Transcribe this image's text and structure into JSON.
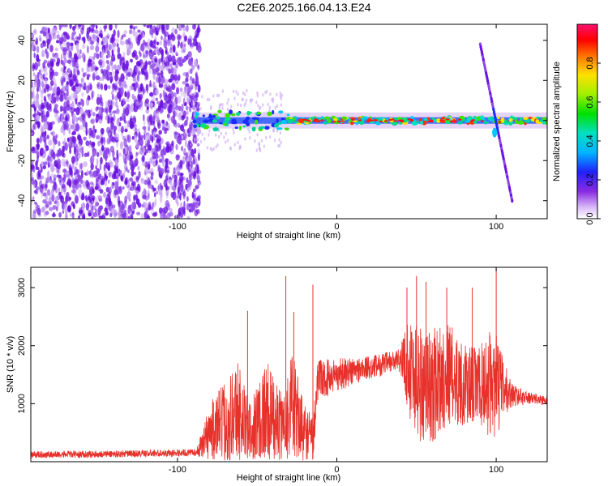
{
  "title": "C2E6.2025.166.04.13.E24",
  "colors": {
    "snr_line": "#e8312b",
    "scatter_noise": "#6a10e0",
    "scatter_light": "#c9a6f2"
  },
  "chart_data": [
    {
      "type": "heatmap",
      "xlabel": "Height of straight line (km)",
      "ylabel": "Frequency (Hz)",
      "xlim": [
        -192,
        132
      ],
      "ylim": [
        -49,
        48
      ],
      "xticks": [
        -100,
        0,
        100
      ],
      "xtick_labels": [
        "-100",
        "0",
        "100"
      ],
      "yticks": [
        -40,
        -20,
        0,
        20,
        40
      ],
      "ytick_labels": [
        "-40",
        "-20",
        "0",
        "20",
        "40"
      ],
      "grid": false,
      "colorbar": {
        "label": "Normalized spectral amplitude",
        "range": [
          0.0,
          1.0
        ],
        "ticks": [
          0.0,
          0.2,
          0.4,
          0.6,
          0.8
        ],
        "tick_labels": [
          "0.0",
          "0.2",
          "0.4",
          "0.6",
          "0.8"
        ],
        "colormap": "rainbow (white-violet-blue-cyan-green-yellow-red-magenta)"
      },
      "features": {
        "noise_region_x": [
          -192,
          -90
        ],
        "noise_density_note": "dense violet speckle across full frequency range",
        "carrier_trace": {
          "x_start": -90,
          "x_end": 132,
          "frequency_hz": 0
        },
        "drift_line": {
          "x": [
            90,
            110
          ],
          "frequency_hz": [
            38,
            -40
          ]
        }
      }
    },
    {
      "type": "line",
      "xlabel": "Height of straight line (km)",
      "ylabel": "SNR (10 * v/v)",
      "xlim": [
        -192,
        132
      ],
      "ylim": [
        0,
        3350
      ],
      "xticks": [
        -100,
        0,
        100
      ],
      "xtick_labels": [
        "-100",
        "0",
        "100"
      ],
      "yticks": [
        1000,
        2000,
        3000
      ],
      "ytick_labels": [
        "1000",
        "2000",
        "3000"
      ],
      "grid": false,
      "series": [
        {
          "envelope": {
            "x": [
              -192,
              -150,
              -100,
              -88,
              -80,
              -70,
              -62,
              -55,
              -45,
              -35,
              -28,
              -20,
              -15,
              -12,
              0,
              20,
              40,
              45,
              50,
              55,
              60,
              70,
              80,
              90,
              95,
              100,
              105,
              110,
              120,
              132
            ],
            "center": [
              120,
              130,
              150,
              160,
              500,
              700,
              900,
              500,
              900,
              600,
              950,
              500,
              400,
              1400,
              1500,
              1620,
              1750,
              1700,
              1400,
              1350,
              1300,
              1550,
              1300,
              1300,
              1350,
              1300,
              1250,
              1150,
              1100,
              1050
            ],
            "spread": [
              60,
              60,
              60,
              60,
              500,
              700,
              900,
              500,
              900,
              600,
              950,
              500,
              400,
              350,
              300,
              200,
              200,
              900,
              1100,
              1000,
              1000,
              900,
              700,
              700,
              900,
              900,
              500,
              200,
              100,
              90
            ]
          },
          "spikes": [
            {
              "x": -56,
              "y": 2600
            },
            {
              "x": -32,
              "y": 3200
            },
            {
              "x": -27,
              "y": 2580
            },
            {
              "x": -15,
              "y": 3050
            },
            {
              "x": 44,
              "y": 3000
            },
            {
              "x": 50,
              "y": 3200
            },
            {
              "x": 56,
              "y": 3100
            },
            {
              "x": 69,
              "y": 3000
            },
            {
              "x": 85,
              "y": 3000
            },
            {
              "x": 100,
              "y": 3350
            }
          ]
        }
      ]
    }
  ]
}
